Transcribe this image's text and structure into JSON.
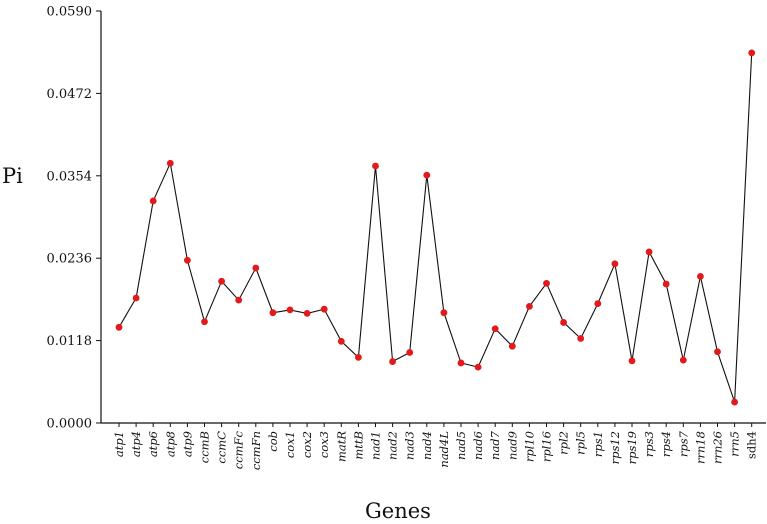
{
  "chart_data": {
    "type": "line",
    "title": "",
    "xlabel": "Genes",
    "ylabel": "Pi",
    "ylim": [
      0,
      0.059
    ],
    "yticks": [
      "0.0000",
      "0.0118",
      "0.0236",
      "0.0354",
      "0.0472",
      "0.0590"
    ],
    "grid": false,
    "legend": "none",
    "colors": {
      "line": "#111111",
      "marker": "#e31a1c"
    },
    "categories": [
      "atp1",
      "atp4",
      "atp6",
      "atp8",
      "atp9",
      "ccmB",
      "ccmC",
      "ccmFc",
      "ccmFn",
      "cob",
      "cox1",
      "cox2",
      "cox3",
      "matR",
      "mttB",
      "nad1",
      "nad2",
      "nad3",
      "nad4",
      "nad4L",
      "nad5",
      "nad6",
      "nad7",
      "nad9",
      "rpl10",
      "rpl16",
      "rpl2",
      "rpl5",
      "rps1",
      "rps12",
      "rps19",
      "rps3",
      "rps4",
      "rps7",
      "rrn18",
      "rrn26",
      "rrn5",
      "sdh4"
    ],
    "upright_categories": [
      "sdh4"
    ],
    "values": [
      0.0137,
      0.0179,
      0.0318,
      0.0372,
      0.0233,
      0.0145,
      0.0203,
      0.0176,
      0.0222,
      0.0158,
      0.0162,
      0.0157,
      0.0163,
      0.0117,
      0.0094,
      0.0368,
      0.0088,
      0.0101,
      0.0355,
      0.0158,
      0.0086,
      0.008,
      0.0135,
      0.011,
      0.0167,
      0.02,
      0.0144,
      0.0121,
      0.0171,
      0.0228,
      0.0089,
      0.0245,
      0.0199,
      0.009,
      0.021,
      0.0102,
      0.003,
      0.053
    ]
  }
}
